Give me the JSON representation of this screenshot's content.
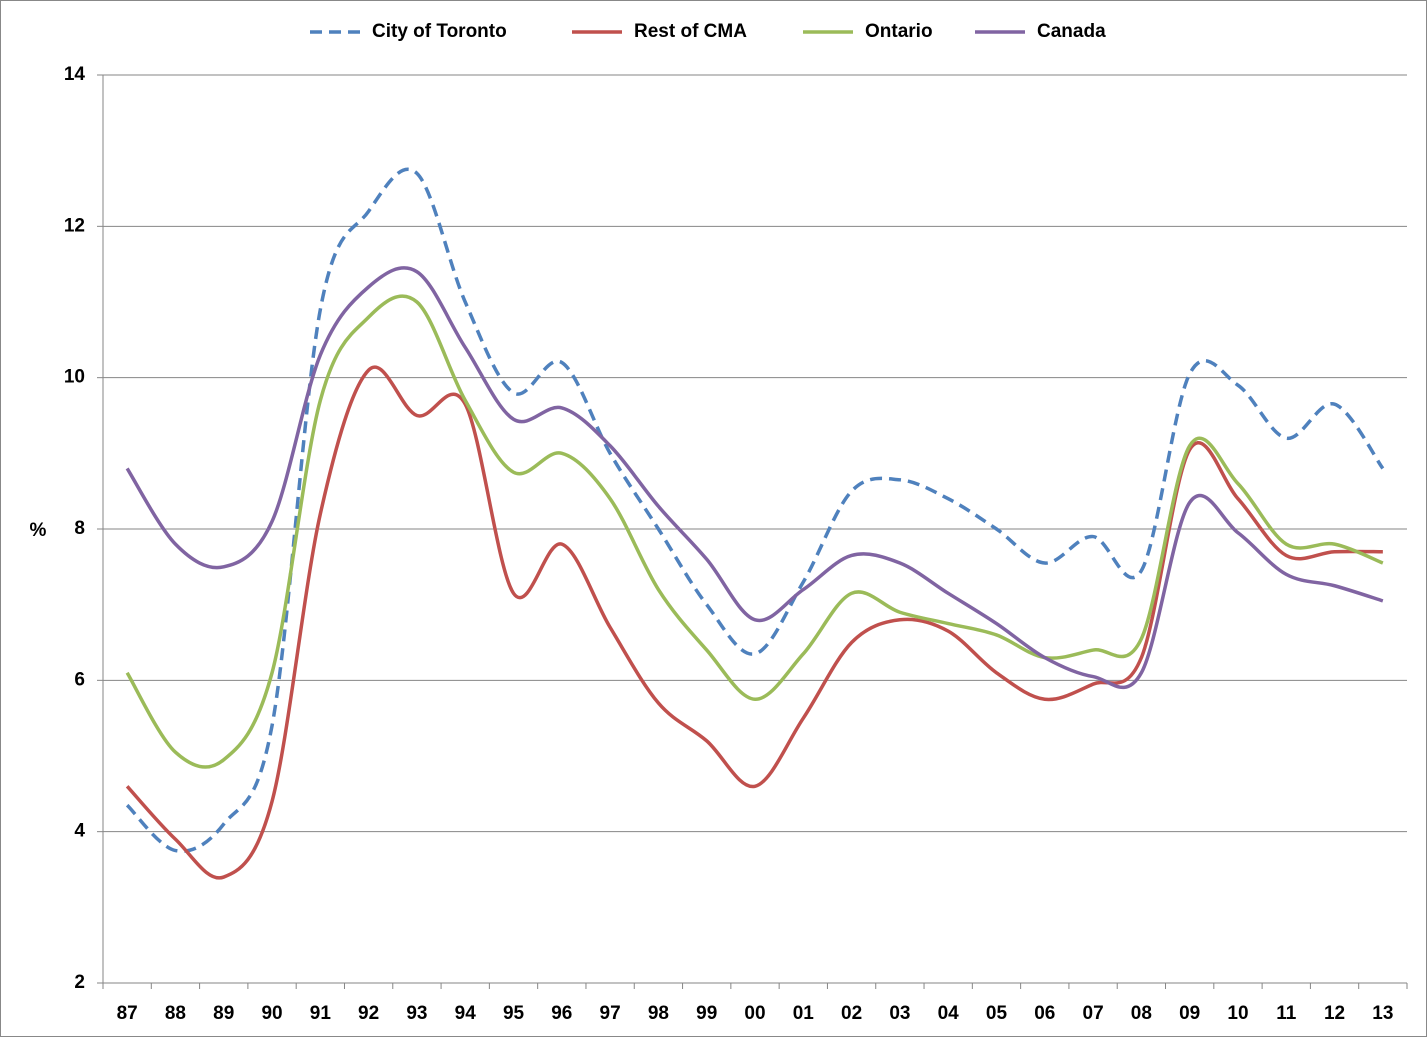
{
  "chart_data": {
    "type": "line",
    "ylabel": "%",
    "categories": [
      "87",
      "88",
      "89",
      "90",
      "91",
      "92",
      "93",
      "94",
      "95",
      "96",
      "97",
      "98",
      "99",
      "00",
      "01",
      "02",
      "03",
      "04",
      "05",
      "06",
      "07",
      "08",
      "09",
      "10",
      "11",
      "12",
      "13"
    ],
    "series": [
      {
        "name": "City of Toronto",
        "color": "#4f81bd",
        "dashed": true,
        "values": [
          4.35,
          3.75,
          4.1,
          5.4,
          10.9,
          12.2,
          12.7,
          11.0,
          9.8,
          10.2,
          9.0,
          8.0,
          7.0,
          6.35,
          7.3,
          8.5,
          8.65,
          8.4,
          8.0,
          7.55,
          7.9,
          7.45,
          10.05,
          9.9,
          9.2,
          9.65,
          8.8
        ]
      },
      {
        "name": "Rest of CMA",
        "color": "#c0504d",
        "dashed": false,
        "values": [
          4.6,
          3.9,
          3.4,
          4.4,
          8.2,
          10.1,
          9.5,
          9.65,
          7.15,
          7.8,
          6.7,
          5.7,
          5.2,
          4.6,
          5.5,
          6.5,
          6.8,
          6.65,
          6.1,
          5.75,
          5.95,
          6.3,
          9.05,
          8.4,
          7.65,
          7.7,
          7.7
        ]
      },
      {
        "name": "Ontario",
        "color": "#9bbb59",
        "dashed": false,
        "values": [
          6.1,
          5.05,
          4.95,
          6.1,
          9.7,
          10.8,
          11.0,
          9.7,
          8.75,
          9.0,
          8.4,
          7.2,
          6.4,
          5.75,
          6.35,
          7.15,
          6.9,
          6.75,
          6.6,
          6.3,
          6.4,
          6.55,
          9.1,
          8.6,
          7.8,
          7.8,
          7.55
        ]
      },
      {
        "name": "Canada",
        "color": "#8064a2",
        "dashed": false,
        "values": [
          8.8,
          7.8,
          7.5,
          8.1,
          10.3,
          11.2,
          11.4,
          10.4,
          9.45,
          9.6,
          9.1,
          8.3,
          7.6,
          6.8,
          7.2,
          7.65,
          7.55,
          7.15,
          6.75,
          6.3,
          6.05,
          6.1,
          8.35,
          7.95,
          7.4,
          7.25,
          7.05
        ]
      }
    ],
    "ylim": [
      2,
      14
    ],
    "yticks": [
      2,
      4,
      6,
      8,
      10,
      12,
      14
    ],
    "grid": true,
    "legend": "top"
  }
}
